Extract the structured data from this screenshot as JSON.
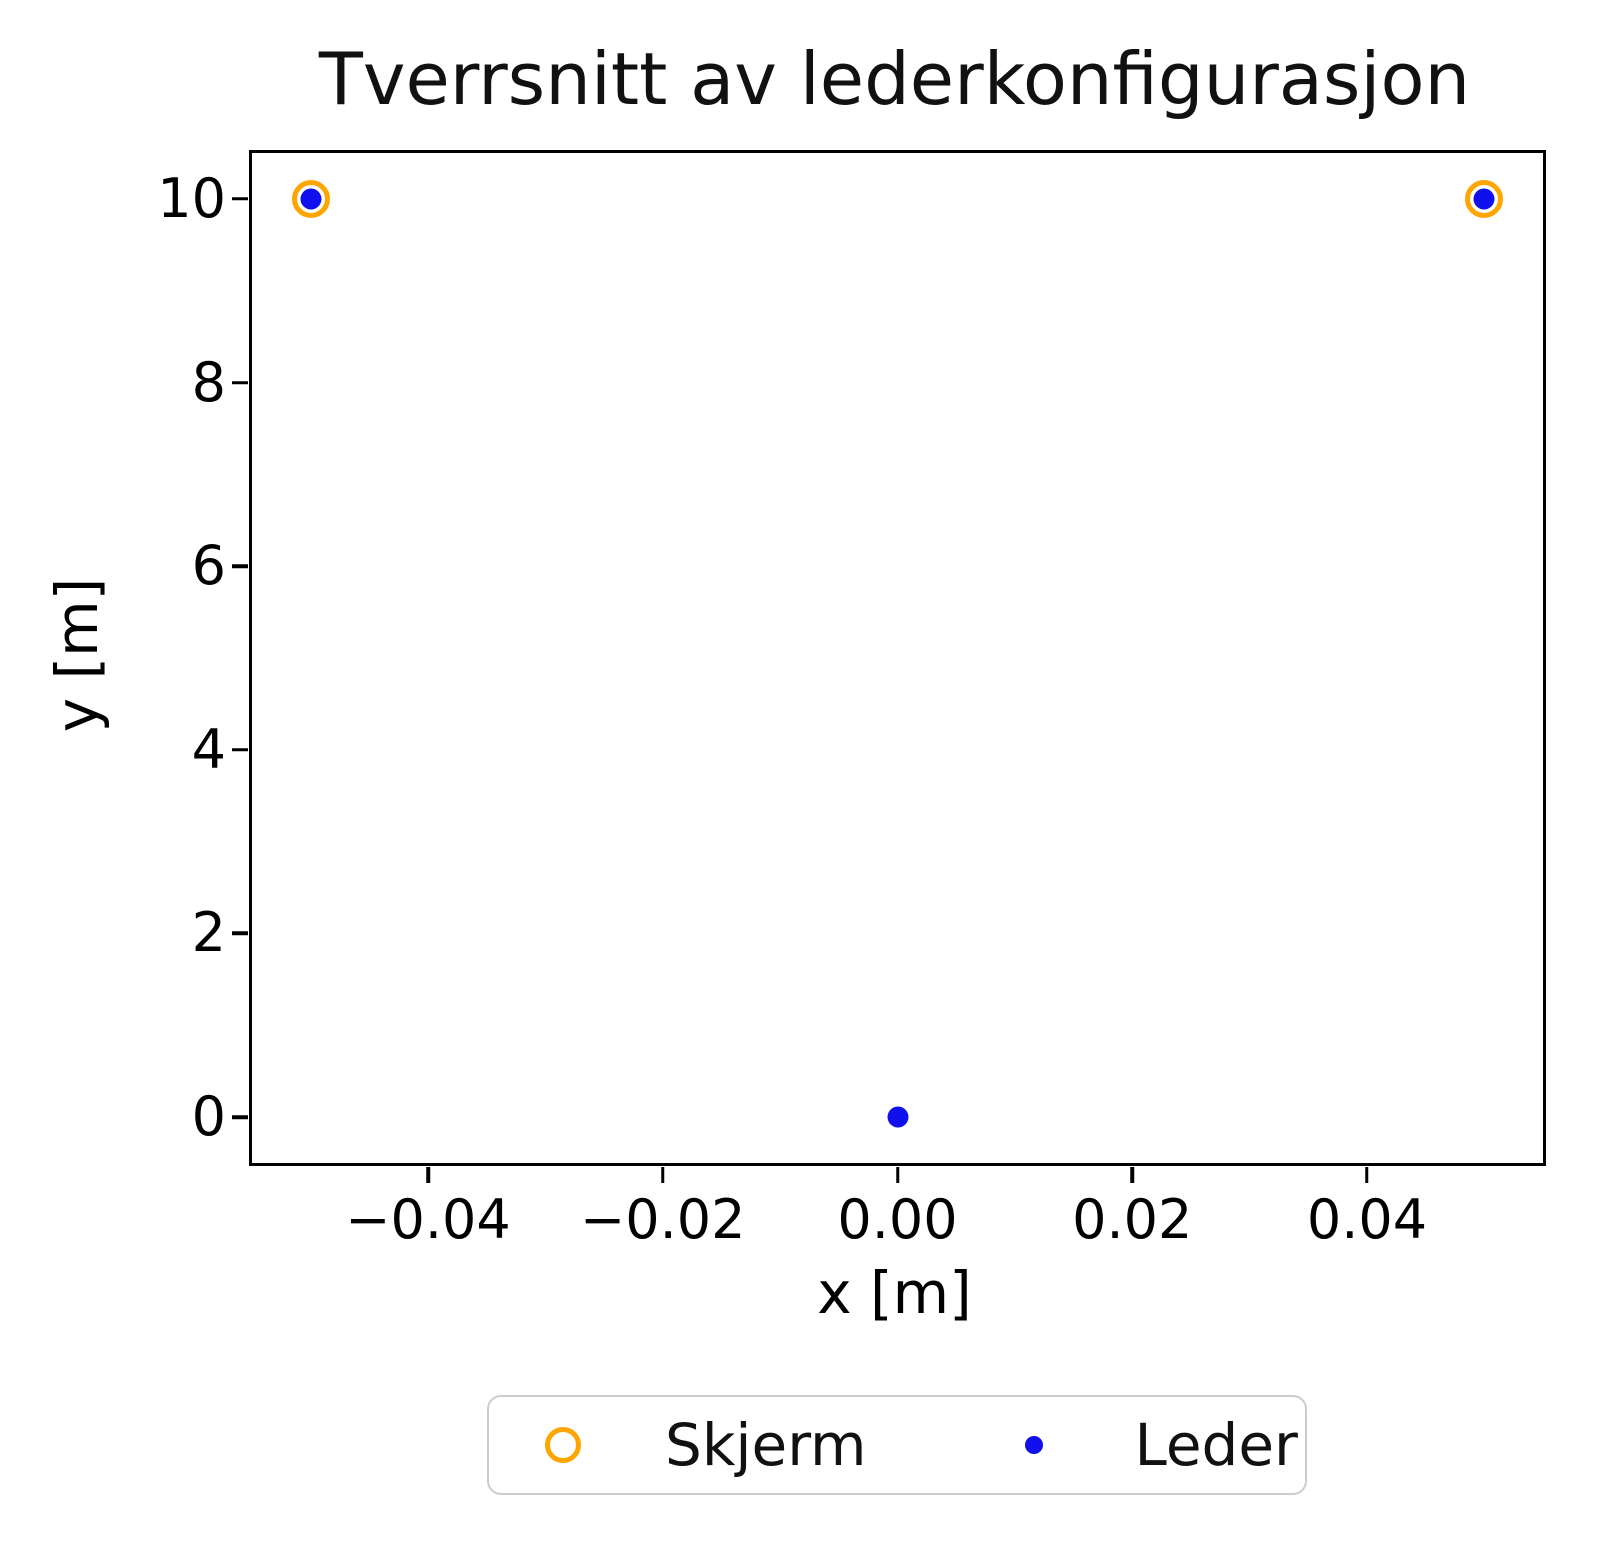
{
  "chart_data": {
    "type": "scatter",
    "title": "Tverrsnitt av lederkonfigurasjon",
    "xlabel": "x [m]",
    "ylabel": "y [m]",
    "xlim": [
      -0.055,
      0.055
    ],
    "ylim": [
      -0.5,
      10.5
    ],
    "grid": false,
    "legend_position": "bottom-center-outside",
    "x_ticks": {
      "values": [
        -0.04,
        -0.02,
        0.0,
        0.02,
        0.04
      ],
      "labels": [
        "−0.04",
        "−0.02",
        "0.00",
        "0.02",
        "0.04"
      ]
    },
    "y_ticks": {
      "values": [
        0,
        2,
        4,
        6,
        8,
        10
      ],
      "labels": [
        "0",
        "2",
        "4",
        "6",
        "8",
        "10"
      ]
    },
    "series": [
      {
        "name": "Skjerm",
        "marker": "open-circle",
        "color": "#FFA500",
        "points": [
          [
            -0.05,
            10
          ],
          [
            0.05,
            10
          ]
        ]
      },
      {
        "name": "Leder",
        "marker": "dot",
        "color": "#1010EE",
        "points": [
          [
            -0.05,
            10
          ],
          [
            0.05,
            10
          ],
          [
            0.0,
            0.0
          ]
        ]
      }
    ]
  },
  "colors": {
    "spine": "#000000",
    "text": "#111111",
    "legend_border": "#cccccc",
    "background": "#ffffff"
  }
}
